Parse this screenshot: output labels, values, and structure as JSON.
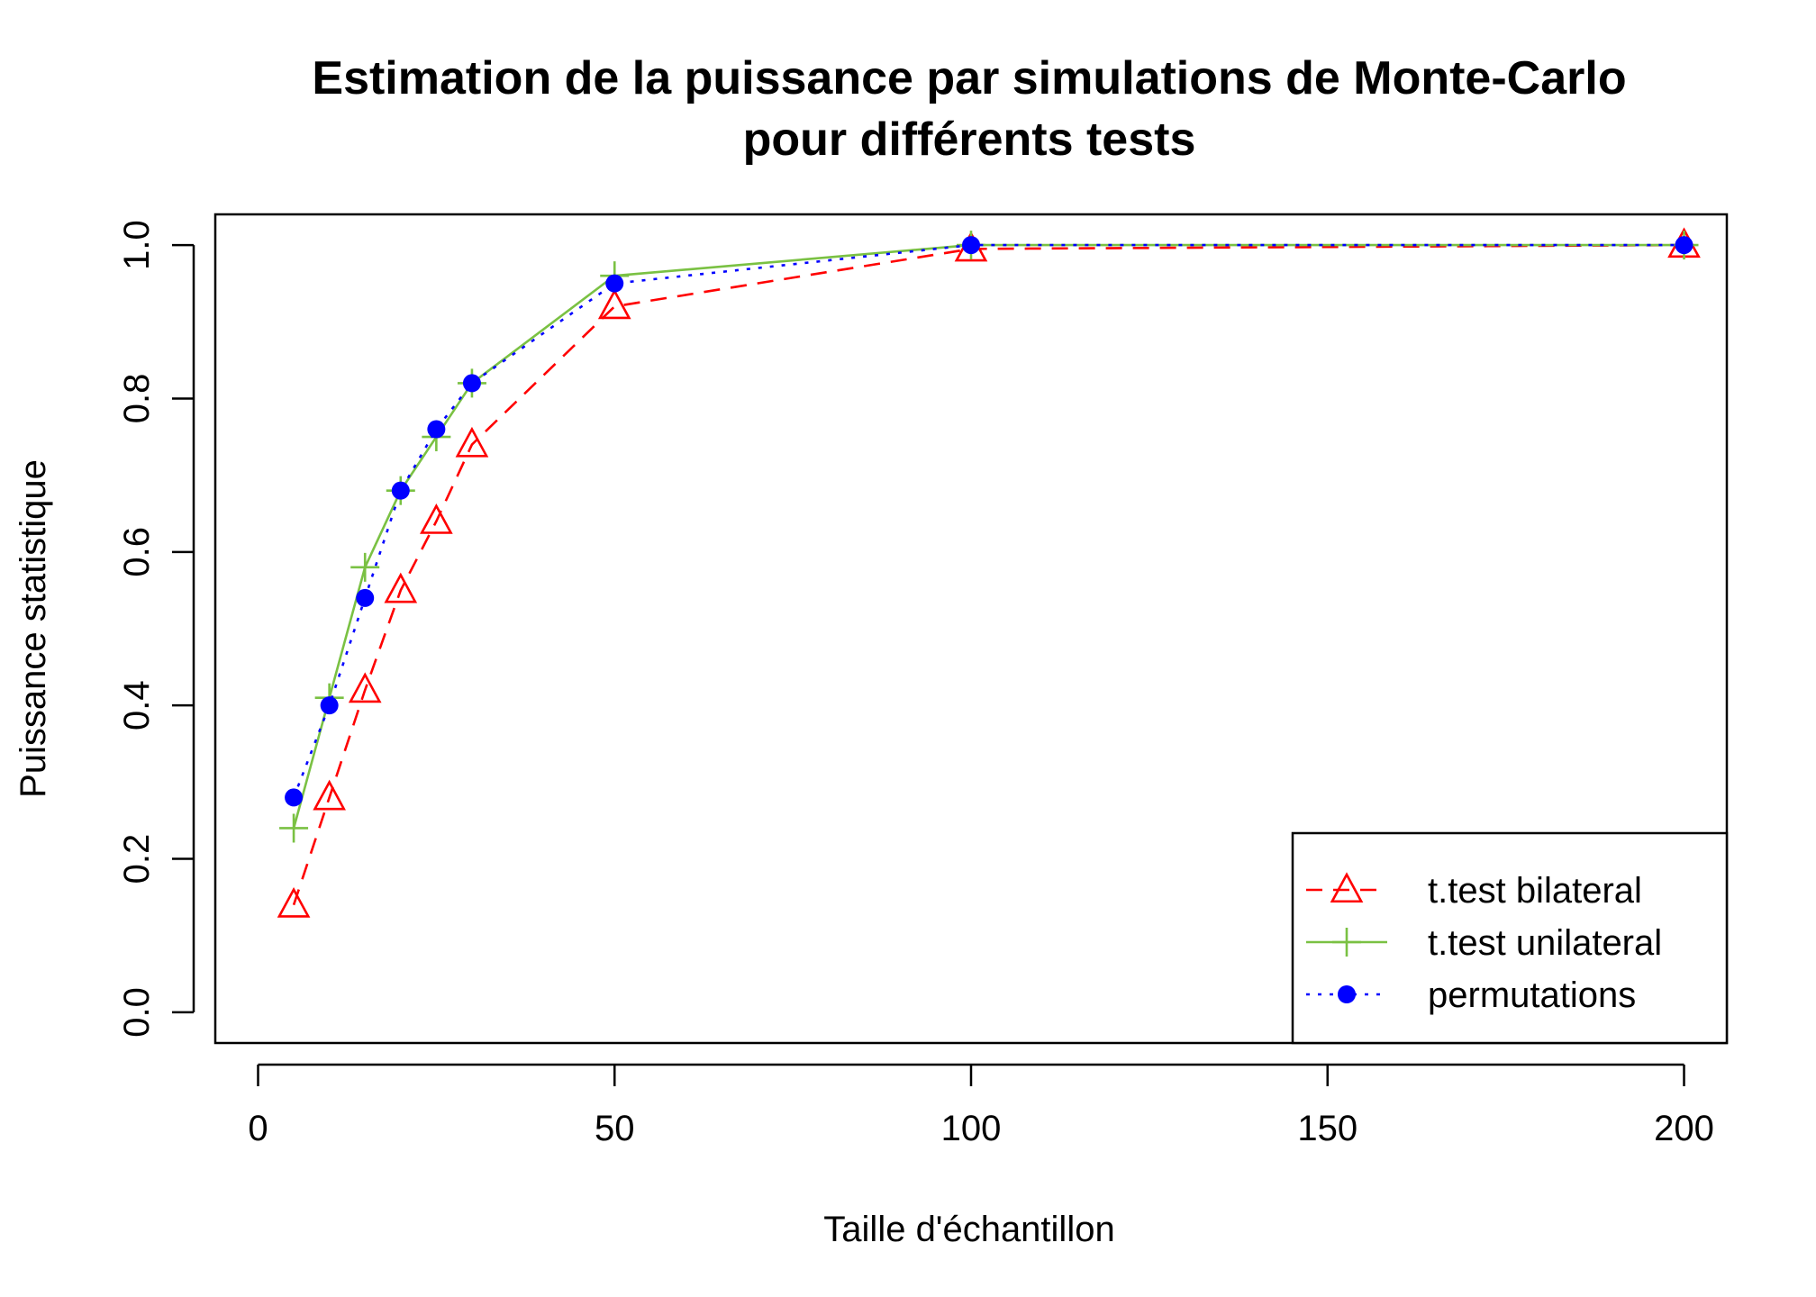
{
  "chart_data": {
    "type": "line",
    "title": "Estimation de la puissance par simulations de Monte-Carlo",
    "subtitle": "pour différents tests",
    "xlabel": "Taille d'échantillon",
    "ylabel": "Puissance statistique",
    "xlim": [
      -6,
      206
    ],
    "ylim": [
      -0.04,
      1.04
    ],
    "xticks": [
      0,
      50,
      100,
      150,
      200
    ],
    "xtick_labels": [
      "0",
      "50",
      "100",
      "150",
      "200"
    ],
    "yticks": [
      0,
      0.2,
      0.4,
      0.6,
      0.8,
      1.0
    ],
    "ytick_labels": [
      "0.0",
      "0.2",
      "0.4",
      "0.6",
      "0.8",
      "1.0"
    ],
    "grid": false,
    "legend_position": "bottom-right",
    "x": [
      5,
      10,
      15,
      20,
      25,
      30,
      50,
      100,
      200
    ],
    "series": [
      {
        "name": "t.test bilateral",
        "values": [
          0.14,
          0.28,
          0.42,
          0.55,
          0.64,
          0.74,
          0.92,
          0.995,
          1.0
        ],
        "color": "#ff0000",
        "line": "dashed",
        "marker": "triangle"
      },
      {
        "name": "t.test unilateral",
        "values": [
          0.24,
          0.41,
          0.58,
          0.68,
          0.75,
          0.82,
          0.96,
          1.0,
          1.0
        ],
        "color": "#7ac143",
        "line": "solid",
        "marker": "plus"
      },
      {
        "name": "permutations",
        "values": [
          0.28,
          0.4,
          0.54,
          0.68,
          0.76,
          0.82,
          0.95,
          1.0,
          1.0
        ],
        "color": "#0000ff",
        "line": "dotted",
        "marker": "filled-circle"
      }
    ]
  }
}
